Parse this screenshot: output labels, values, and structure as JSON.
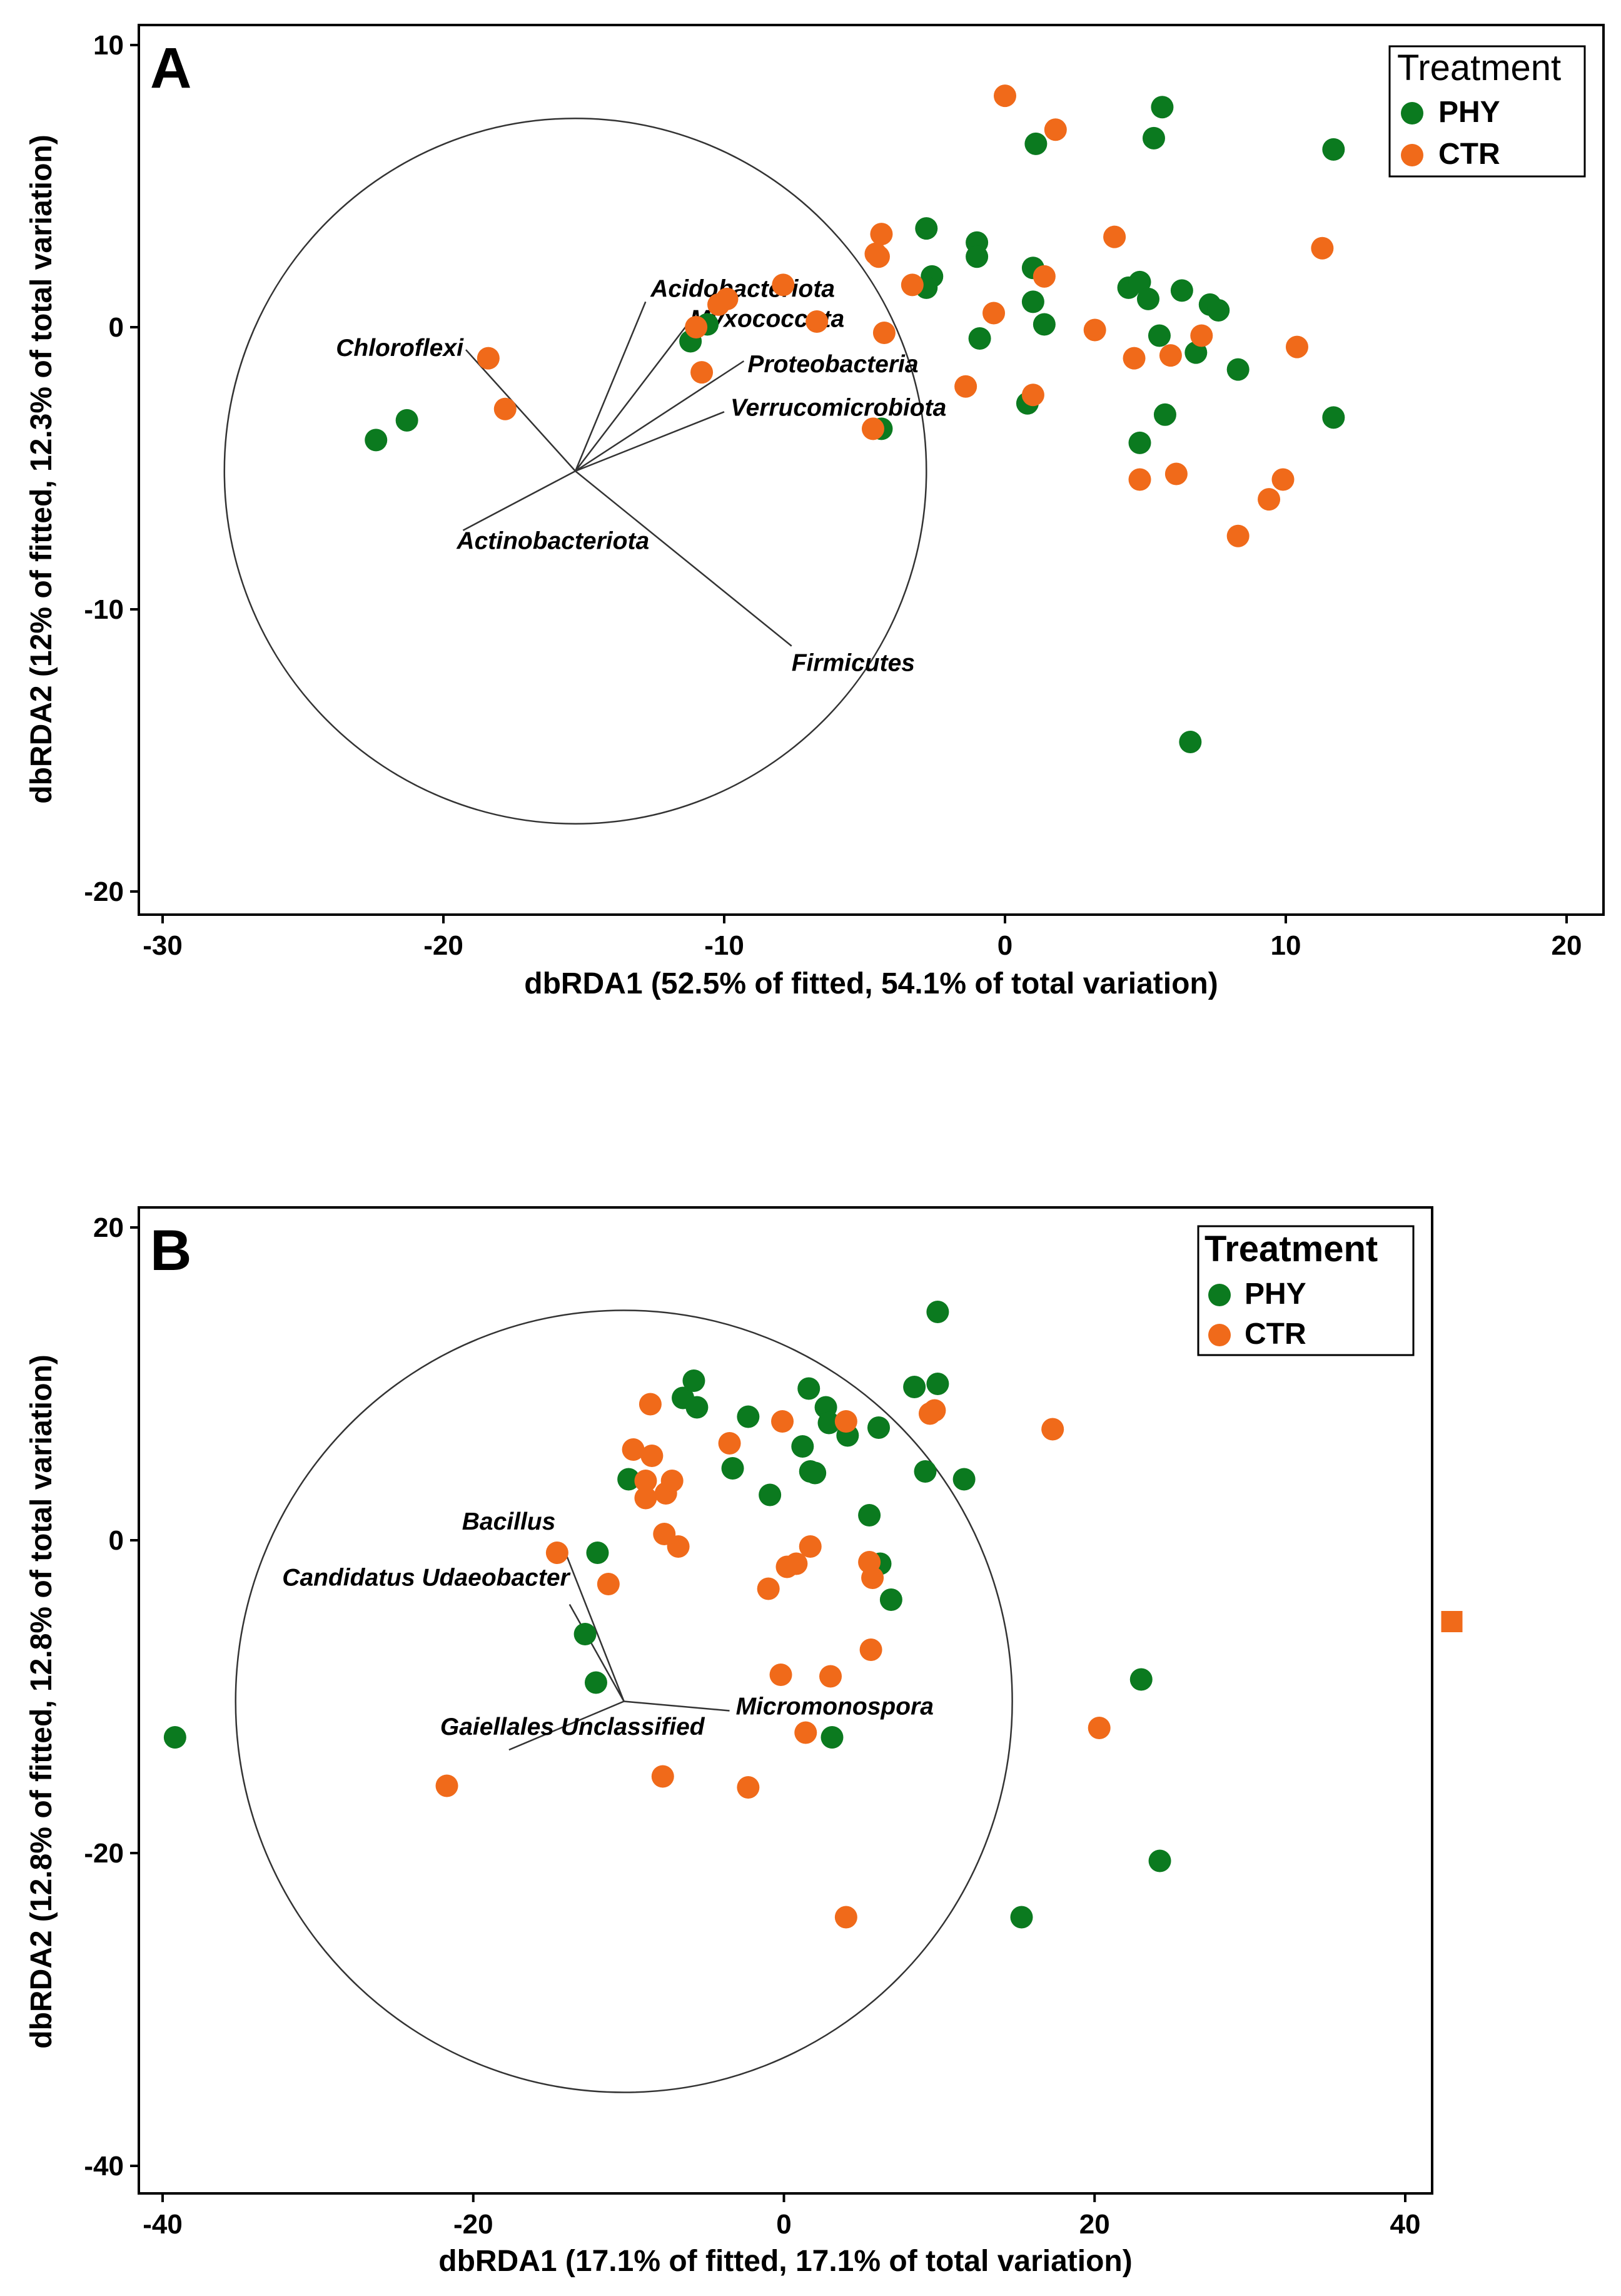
{
  "colors": {
    "PHY": "#0b7a1f",
    "CTR": "#f06a1a",
    "axis": "#000000"
  },
  "chart_data": [
    {
      "type": "scatter",
      "panel_label": "A",
      "xlabel": "dbRDA1 (52.5% of fitted, 54.1% of total variation)",
      "ylabel": "dbRDA2 (12% of fitted, 12.3% of total variation)",
      "xlim": [
        -31,
        21
      ],
      "ylim": [
        -21,
        10.5
      ],
      "xticks": [
        -30,
        -20,
        -10,
        0,
        10,
        20
      ],
      "yticks": [
        10,
        0,
        -10,
        -20
      ],
      "legend": {
        "title": "Treatment",
        "placement": "top-right",
        "items": [
          "PHY",
          "CTR"
        ]
      },
      "circle": {
        "center": [
          -15.3,
          -5.1
        ],
        "radius": 12.5
      },
      "vectors": [
        {
          "name": "Chloroflexi",
          "end": [
            -19.2,
            -0.8
          ]
        },
        {
          "name": "Acidobacteriota",
          "end": [
            -12.8,
            0.9
          ]
        },
        {
          "name": "Myxococcota",
          "end": [
            -11.0,
            0.5
          ]
        },
        {
          "name": "Proteobacteria",
          "end": [
            -9.3,
            -1.2
          ]
        },
        {
          "name": "Verrucomicrobiota",
          "end": [
            -10.0,
            -3.0
          ]
        },
        {
          "name": "Actinobacteriota",
          "end": [
            -19.3,
            -7.2
          ]
        },
        {
          "name": "Firmicutes",
          "end": [
            -7.6,
            -11.3
          ]
        }
      ],
      "series": [
        {
          "name": "PHY",
          "points": [
            [
              -22.4,
              -4.0
            ],
            [
              -21.3,
              -3.3
            ],
            [
              -11.2,
              -0.5
            ],
            [
              -10.6,
              0.1
            ],
            [
              -4.4,
              -3.6
            ],
            [
              -2.8,
              3.5
            ],
            [
              -2.6,
              1.8
            ],
            [
              -2.8,
              1.4
            ],
            [
              -1.0,
              3.0
            ],
            [
              -1.0,
              2.5
            ],
            [
              -0.9,
              -0.4
            ],
            [
              0.8,
              -2.7
            ],
            [
              1.1,
              6.5
            ],
            [
              1.0,
              2.1
            ],
            [
              1.0,
              0.9
            ],
            [
              1.4,
              0.1
            ],
            [
              4.4,
              1.4
            ],
            [
              4.8,
              1.6
            ],
            [
              5.1,
              1.0
            ],
            [
              5.3,
              6.7
            ],
            [
              5.6,
              7.8
            ],
            [
              5.5,
              -0.3
            ],
            [
              5.7,
              -3.1
            ],
            [
              4.8,
              -4.1
            ],
            [
              6.3,
              1.3
            ],
            [
              6.8,
              -0.9
            ],
            [
              7.3,
              0.8
            ],
            [
              7.6,
              0.6
            ],
            [
              8.3,
              -1.5
            ],
            [
              11.7,
              6.3
            ],
            [
              11.7,
              -3.2
            ],
            [
              6.6,
              -14.7
            ]
          ]
        },
        {
          "name": "CTR",
          "points": [
            [
              -18.4,
              -1.1
            ],
            [
              -17.8,
              -2.9
            ],
            [
              -11.0,
              0.0
            ],
            [
              -10.8,
              -1.6
            ],
            [
              -10.2,
              0.8
            ],
            [
              -9.9,
              1.0
            ],
            [
              -7.9,
              1.5
            ],
            [
              -6.7,
              0.2
            ],
            [
              -4.6,
              2.6
            ],
            [
              -4.4,
              3.3
            ],
            [
              -4.7,
              -3.6
            ],
            [
              -4.3,
              -0.2
            ],
            [
              -3.3,
              1.5
            ],
            [
              -1.4,
              -2.1
            ],
            [
              -0.4,
              0.5
            ],
            [
              0.0,
              8.2
            ],
            [
              1.8,
              7.0
            ],
            [
              1.4,
              1.8
            ],
            [
              1.0,
              -2.4
            ],
            [
              3.2,
              -0.1
            ],
            [
              3.9,
              3.2
            ],
            [
              4.6,
              -1.1
            ],
            [
              4.8,
              -5.4
            ],
            [
              5.9,
              -1.0
            ],
            [
              6.1,
              -5.2
            ],
            [
              7.0,
              -0.3
            ],
            [
              8.3,
              -7.4
            ],
            [
              9.4,
              -6.1
            ],
            [
              9.9,
              -5.4
            ],
            [
              10.4,
              -0.7
            ],
            [
              11.3,
              2.8
            ],
            [
              -4.5,
              2.5
            ]
          ]
        }
      ]
    },
    {
      "type": "scatter",
      "panel_label": "B",
      "xlabel": "dbRDA1 (17.1% of fitted, 17.1% of total variation)",
      "ylabel": "dbRDA2 (12.8% of fitted, 12.8% of total variation)",
      "xlim": [
        -41,
        41
      ],
      "ylim": [
        -41,
        21
      ],
      "xticks": [
        -40,
        -20,
        0,
        20,
        40
      ],
      "yticks": [
        20,
        0,
        -20,
        -40
      ],
      "legend": {
        "title": "Treatment",
        "placement": "top-right",
        "items": [
          "PHY",
          "CTR"
        ]
      },
      "circle": {
        "center": [
          -10.3,
          -10.3
        ],
        "radius": 25
      },
      "vectors": [
        {
          "name": "Bacillus",
          "end": [
            -14.3,
            -0.2
          ]
        },
        {
          "name": "Candidatus  Udaeobacter",
          "end": [
            -13.8,
            -4.1
          ]
        },
        {
          "name": "Micromonospora",
          "end": [
            -3.5,
            -10.9
          ]
        },
        {
          "name": "Gaiellales Unclassified",
          "end": [
            -17.7,
            -13.4
          ]
        }
      ],
      "series": [
        {
          "name": "PHY",
          "points": [
            [
              -39.2,
              -12.6
            ],
            [
              -12.0,
              -0.8
            ],
            [
              -12.8,
              -6.0
            ],
            [
              -12.1,
              -9.1
            ],
            [
              -10.0,
              3.9
            ],
            [
              -6.5,
              9.1
            ],
            [
              -5.8,
              10.2
            ],
            [
              -5.6,
              8.5
            ],
            [
              -3.3,
              4.6
            ],
            [
              -2.3,
              7.9
            ],
            [
              -0.9,
              2.9
            ],
            [
              1.2,
              6.0
            ],
            [
              1.6,
              9.7
            ],
            [
              1.7,
              4.4
            ],
            [
              2.0,
              4.3
            ],
            [
              2.7,
              8.5
            ],
            [
              2.9,
              7.5
            ],
            [
              4.1,
              6.7
            ],
            [
              5.5,
              1.6
            ],
            [
              6.1,
              7.2
            ],
            [
              6.2,
              -1.5
            ],
            [
              6.9,
              -3.8
            ],
            [
              8.4,
              9.8
            ],
            [
              9.1,
              4.4
            ],
            [
              9.9,
              14.6
            ],
            [
              9.9,
              10.0
            ],
            [
              11.6,
              3.9
            ],
            [
              3.1,
              -12.6
            ],
            [
              23.0,
              -8.9
            ],
            [
              24.2,
              -20.5
            ],
            [
              15.3,
              -24.1
            ]
          ]
        },
        {
          "name": "CTR",
          "points": [
            [
              -14.6,
              -0.8
            ],
            [
              -11.3,
              -2.8
            ],
            [
              -9.7,
              5.8
            ],
            [
              -8.9,
              3.8
            ],
            [
              -8.6,
              8.7
            ],
            [
              -8.5,
              5.4
            ],
            [
              -8.9,
              2.7
            ],
            [
              -7.6,
              3.0
            ],
            [
              -7.2,
              3.8
            ],
            [
              -7.7,
              0.4
            ],
            [
              -6.8,
              -0.4
            ],
            [
              -3.5,
              6.2
            ],
            [
              -0.1,
              7.6
            ],
            [
              -1.0,
              -3.1
            ],
            [
              0.2,
              -1.7
            ],
            [
              0.8,
              -1.5
            ],
            [
              1.7,
              -0.4
            ],
            [
              4.0,
              7.6
            ],
            [
              5.5,
              -1.4
            ],
            [
              5.7,
              -2.4
            ],
            [
              5.6,
              -7.0
            ],
            [
              9.4,
              8.1
            ],
            [
              9.7,
              8.3
            ],
            [
              17.3,
              7.1
            ],
            [
              20.3,
              -12.0
            ],
            [
              -0.2,
              -8.6
            ],
            [
              3.0,
              -8.7
            ],
            [
              1.4,
              -12.3
            ],
            [
              -7.8,
              -15.1
            ],
            [
              -2.3,
              -15.8
            ],
            [
              -21.7,
              -15.7
            ],
            [
              4.0,
              -24.1
            ]
          ]
        }
      ],
      "outlier": {
        "name": "CTR",
        "point": [
          43.0,
          -5.2
        ],
        "shape": "square"
      }
    }
  ]
}
